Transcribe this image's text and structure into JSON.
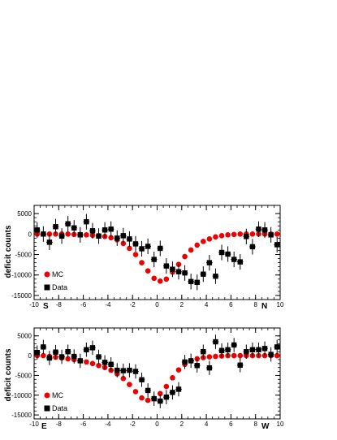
{
  "chart_data": [
    {
      "type": "scatter",
      "ylabel": "deficit counts",
      "xlim": [
        -10,
        10
      ],
      "ylim": [
        -16000,
        7000
      ],
      "xticks": [
        -10,
        -8,
        -6,
        -4,
        -2,
        0,
        2,
        4,
        6,
        8,
        10
      ],
      "yticks": [
        -15000,
        -10000,
        -5000,
        0,
        5000
      ],
      "ytick_labels": [
        "-15000",
        "-10000",
        "-5000",
        "0",
        "5000"
      ],
      "direction_labels": {
        "left": "S",
        "right": "N"
      },
      "legend": {
        "position": "bottom-left"
      },
      "series": [
        {
          "name": "MC",
          "marker": "circle",
          "color": "#ee0000",
          "x": [
            -9.75,
            -9.25,
            -8.75,
            -8.25,
            -7.75,
            -7.25,
            -6.75,
            -6.25,
            -5.75,
            -5.25,
            -4.75,
            -4.25,
            -3.75,
            -3.25,
            -2.75,
            -2.25,
            -1.75,
            -1.25,
            -0.75,
            -0.25,
            0.25,
            0.75,
            1.25,
            1.75,
            2.25,
            2.75,
            3.25,
            3.75,
            4.25,
            4.75,
            5.25,
            5.75,
            6.25,
            6.75,
            7.25,
            7.75,
            8.25,
            8.75,
            9.25,
            9.75
          ],
          "y": [
            0,
            0,
            0,
            0,
            0,
            0,
            -100,
            -100,
            -200,
            -300,
            -400,
            -600,
            -900,
            -1400,
            -2300,
            -3500,
            -5000,
            -7000,
            -9000,
            -10800,
            -11500,
            -11000,
            -9300,
            -7400,
            -5500,
            -3900,
            -2700,
            -1800,
            -1200,
            -700,
            -400,
            -200,
            -100,
            0,
            0,
            0,
            0,
            0,
            0,
            0
          ]
        },
        {
          "name": "Data",
          "marker": "square",
          "color": "#000000",
          "x": [
            -9.75,
            -9.25,
            -8.75,
            -8.25,
            -7.75,
            -7.25,
            -6.75,
            -6.25,
            -5.75,
            -5.25,
            -4.75,
            -4.25,
            -3.75,
            -3.25,
            -2.75,
            -2.25,
            -1.75,
            -1.25,
            -0.75,
            -0.25,
            0.25,
            0.75,
            1.25,
            1.75,
            2.25,
            2.75,
            3.25,
            3.75,
            4.25,
            4.75,
            5.25,
            5.75,
            6.25,
            6.75,
            7.25,
            7.75,
            8.25,
            8.75,
            9.25,
            9.75
          ],
          "y": [
            1000,
            0,
            -2000,
            1800,
            -500,
            2500,
            1500,
            -200,
            3000,
            800,
            -500,
            1000,
            1200,
            -1000,
            -400,
            -1200,
            -2400,
            -3600,
            -3000,
            -6200,
            -3500,
            -7800,
            -8600,
            -9200,
            -9500,
            -11600,
            -11800,
            -9800,
            -7000,
            -10300,
            -4500,
            -4900,
            -6200,
            -6800,
            -600,
            -3100,
            1200,
            1000,
            -200,
            -2600
          ],
          "err": 1900
        }
      ]
    },
    {
      "type": "scatter",
      "ylabel": "deficit counts",
      "xlim": [
        -10,
        10
      ],
      "ylim": [
        -16000,
        7000
      ],
      "xticks": [
        -10,
        -8,
        -6,
        -4,
        -2,
        0,
        2,
        4,
        6,
        8,
        10
      ],
      "yticks": [
        -15000,
        -10000,
        -5000,
        0,
        5000
      ],
      "ytick_labels": [
        "-15000",
        "-10000",
        "-5000",
        "0",
        "5000"
      ],
      "direction_labels": {
        "left": "E",
        "right": "W"
      },
      "legend": {
        "position": "bottom-left"
      },
      "series": [
        {
          "name": "MC",
          "marker": "circle",
          "color": "#ee0000",
          "x": [
            -9.75,
            -9.25,
            -8.75,
            -8.25,
            -7.75,
            -7.25,
            -6.75,
            -6.25,
            -5.75,
            -5.25,
            -4.75,
            -4.25,
            -3.75,
            -3.25,
            -2.75,
            -2.25,
            -1.75,
            -1.25,
            -0.75,
            -0.25,
            0.25,
            0.75,
            1.25,
            1.75,
            2.25,
            2.75,
            3.25,
            3.75,
            4.25,
            4.75,
            5.25,
            5.75,
            6.25,
            6.75,
            7.25,
            7.75,
            8.25,
            8.75,
            9.25,
            9.75
          ],
          "y": [
            0,
            0,
            -200,
            -400,
            -600,
            -800,
            -1000,
            -1300,
            -1600,
            -2000,
            -2500,
            -3000,
            -3700,
            -4600,
            -5800,
            -7300,
            -9100,
            -10700,
            -11300,
            -10800,
            -9600,
            -7800,
            -5600,
            -3600,
            -2200,
            -1300,
            -800,
            -500,
            -300,
            -200,
            -100,
            0,
            0,
            0,
            0,
            0,
            0,
            0,
            0,
            0
          ]
        },
        {
          "name": "Data",
          "marker": "square",
          "color": "#000000",
          "x": [
            -9.75,
            -9.25,
            -8.75,
            -8.25,
            -7.75,
            -7.25,
            -6.75,
            -6.25,
            -5.75,
            -5.25,
            -4.75,
            -4.25,
            -3.75,
            -3.25,
            -2.75,
            -2.25,
            -1.75,
            -1.25,
            -0.75,
            -0.25,
            0.25,
            0.75,
            1.25,
            1.75,
            2.25,
            2.75,
            3.25,
            3.75,
            4.25,
            4.75,
            5.25,
            5.75,
            6.25,
            6.75,
            7.25,
            7.75,
            8.25,
            8.75,
            9.25,
            9.75
          ],
          "y": [
            800,
            2200,
            -600,
            900,
            -300,
            1000,
            -200,
            -1300,
            1500,
            2000,
            -300,
            -1700,
            -2200,
            -3700,
            -3800,
            -3700,
            -4000,
            -6100,
            -8800,
            -10900,
            -11500,
            -10500,
            -9300,
            -8500,
            -1600,
            -1300,
            -2500,
            1000,
            -3100,
            3500,
            1300,
            1500,
            2700,
            -2400,
            1000,
            1500,
            1500,
            1800,
            300,
            2200
          ],
          "err": 1800
        }
      ]
    }
  ]
}
